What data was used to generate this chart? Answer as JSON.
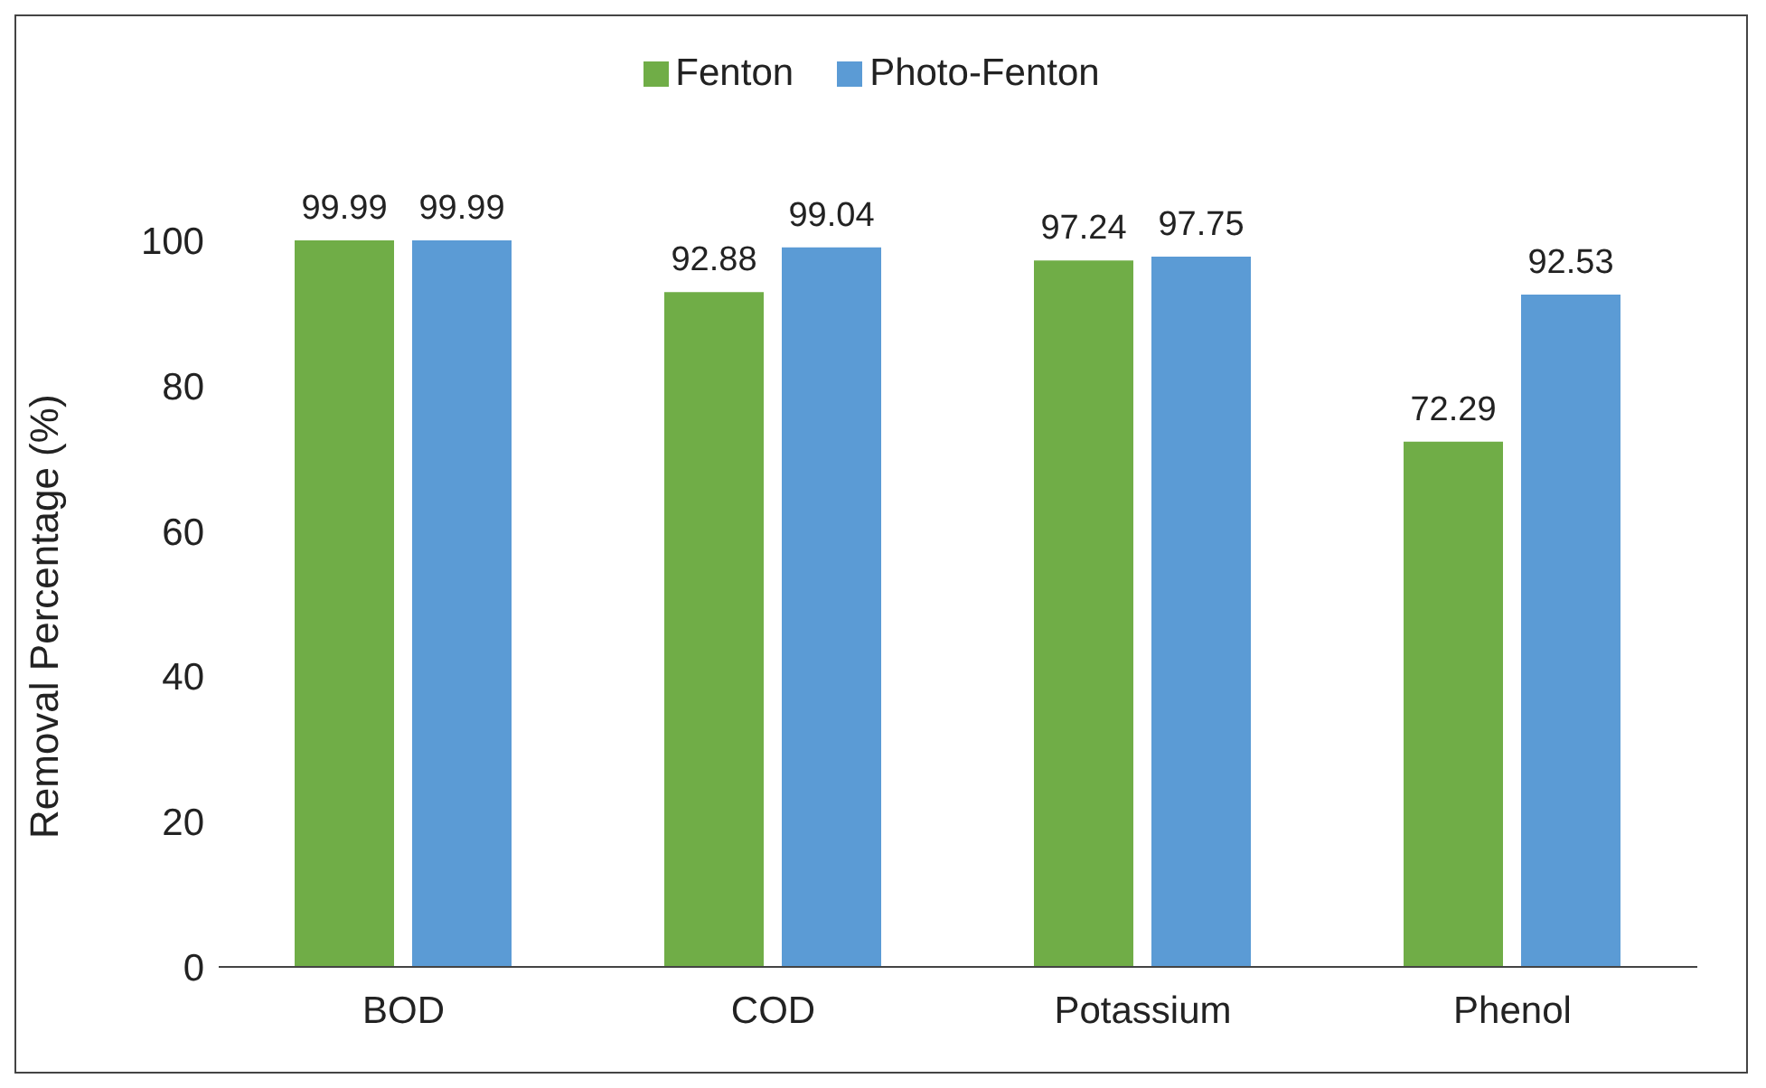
{
  "chart_data": {
    "type": "bar",
    "ylabel": "Removal Percentage (%)",
    "categories": [
      "BOD",
      "COD",
      "Potassium",
      "Phenol"
    ],
    "series": [
      {
        "name": "Fenton",
        "color": "#70ad47",
        "values": [
          99.99,
          92.88,
          97.24,
          72.29
        ]
      },
      {
        "name": "Photo-Fenton",
        "color": "#5b9bd5",
        "values": [
          99.99,
          99.04,
          97.75,
          92.53
        ]
      }
    ],
    "ylim": [
      0,
      100
    ],
    "yticks": [
      0,
      20,
      40,
      60,
      80,
      100
    ],
    "grid": false,
    "legend": "top",
    "data_labels": true
  }
}
